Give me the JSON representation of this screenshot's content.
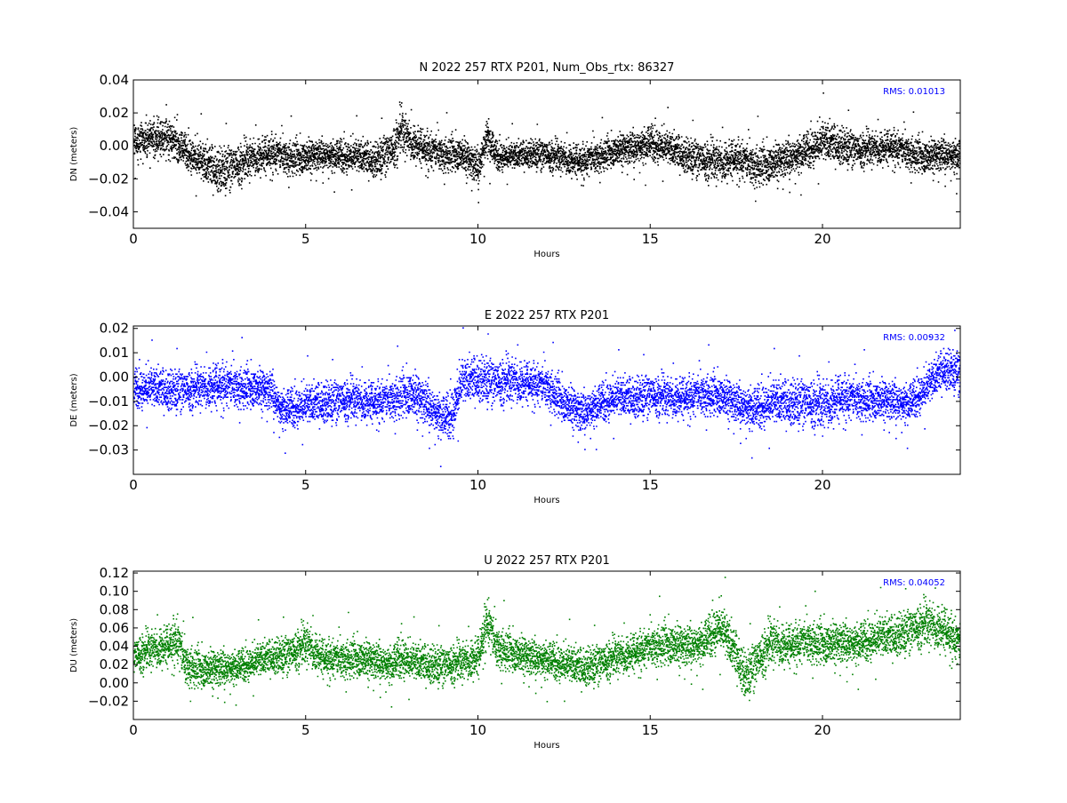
{
  "chart_data": [
    {
      "type": "scatter",
      "title": "N 2022 257 RTX  P201, Num_Obs_rtx: 86327",
      "xlabel": "Hours",
      "ylabel": "DN (meters)",
      "xlim": [
        0,
        24
      ],
      "ylim": [
        -0.05,
        0.04
      ],
      "xticks": [
        0,
        5,
        10,
        15,
        20
      ],
      "xtick_labels": [
        "0",
        "5",
        "10",
        "15",
        "20"
      ],
      "yticks": [
        -0.04,
        -0.02,
        0.0,
        0.02,
        0.04
      ],
      "ytick_labels": [
        "−0.04",
        "−0.02",
        "0.00",
        "0.02",
        "0.04"
      ],
      "annotation": "RMS:  0.01013",
      "color": "#000000",
      "grid": false,
      "series": [
        {
          "x": [
            0,
            0.5,
            1,
            1.5,
            2,
            2.5,
            3,
            3.5,
            4,
            4.5,
            5,
            5.5,
            6,
            6.5,
            7,
            7.5,
            7.75,
            8,
            8.5,
            9,
            9.5,
            10,
            10.25,
            10.5,
            11,
            11.5,
            12,
            12.5,
            13,
            13.5,
            14,
            14.5,
            15,
            15.5,
            16,
            16.5,
            17,
            17.5,
            18,
            18.5,
            19,
            19.5,
            20,
            20.5,
            21,
            21.5,
            22,
            22.5,
            23,
            23.5,
            24
          ],
          "y": [
            0.002,
            0.004,
            0.006,
            -0.002,
            -0.01,
            -0.014,
            -0.011,
            -0.006,
            -0.004,
            -0.007,
            -0.006,
            -0.004,
            -0.005,
            -0.006,
            -0.008,
            -0.002,
            0.01,
            0.004,
            -0.002,
            -0.005,
            -0.004,
            -0.012,
            0.008,
            -0.005,
            -0.006,
            -0.004,
            -0.005,
            -0.007,
            -0.009,
            -0.006,
            -0.002,
            0.0,
            0.003,
            -0.001,
            -0.005,
            -0.008,
            -0.009,
            -0.007,
            -0.012,
            -0.01,
            -0.006,
            -0.002,
            0.003,
            0.001,
            -0.002,
            -0.001,
            0.0,
            -0.004,
            -0.006,
            -0.004,
            -0.005
          ],
          "spread": [
            0.01,
            0.011,
            0.011,
            0.01,
            0.012,
            0.013,
            0.012,
            0.011,
            0.011,
            0.01,
            0.01,
            0.009,
            0.01,
            0.01,
            0.01,
            0.012,
            0.014,
            0.011,
            0.011,
            0.01,
            0.01,
            0.011,
            0.012,
            0.009,
            0.008,
            0.008,
            0.009,
            0.009,
            0.01,
            0.009,
            0.009,
            0.01,
            0.011,
            0.01,
            0.01,
            0.011,
            0.012,
            0.011,
            0.012,
            0.011,
            0.011,
            0.011,
            0.012,
            0.011,
            0.01,
            0.01,
            0.01,
            0.01,
            0.01,
            0.01,
            0.01
          ]
        }
      ]
    },
    {
      "type": "scatter",
      "title": "E 2022 257 RTX  P201",
      "xlabel": "Hours",
      "ylabel": "DE (meters)",
      "xlim": [
        0,
        24
      ],
      "ylim": [
        -0.04,
        0.021
      ],
      "xticks": [
        0,
        5,
        10,
        15,
        20
      ],
      "xtick_labels": [
        "0",
        "5",
        "10",
        "15",
        "20"
      ],
      "yticks": [
        -0.03,
        -0.02,
        -0.01,
        0.0,
        0.01,
        0.02
      ],
      "ytick_labels": [
        "−0.03",
        "−0.02",
        "−0.01",
        "0.00",
        "0.01",
        "0.02"
      ],
      "annotation": "RMS:  0.00932",
      "color": "#0000ff",
      "grid": false,
      "series": [
        {
          "x": [
            0,
            0.5,
            1,
            1.5,
            2,
            2.5,
            3,
            3.5,
            4,
            4.25,
            4.5,
            5,
            5.5,
            6,
            6.5,
            7,
            7.5,
            8,
            8.5,
            9,
            9.25,
            9.5,
            10,
            10.5,
            11,
            11.5,
            12,
            12.5,
            13,
            13.5,
            14,
            14.5,
            15,
            15.5,
            16,
            16.5,
            17,
            17.5,
            18,
            18.5,
            19,
            19.5,
            20,
            20.5,
            21,
            21.5,
            22,
            22.5,
            23,
            23.5,
            24
          ],
          "y": [
            -0.004,
            -0.004,
            -0.005,
            -0.005,
            -0.004,
            -0.003,
            -0.004,
            -0.004,
            -0.005,
            -0.012,
            -0.012,
            -0.011,
            -0.01,
            -0.009,
            -0.009,
            -0.01,
            -0.009,
            -0.006,
            -0.01,
            -0.016,
            -0.014,
            -0.002,
            0.0,
            -0.002,
            -0.001,
            -0.002,
            -0.004,
            -0.01,
            -0.014,
            -0.01,
            -0.008,
            -0.008,
            -0.007,
            -0.008,
            -0.008,
            -0.007,
            -0.007,
            -0.01,
            -0.012,
            -0.01,
            -0.01,
            -0.01,
            -0.011,
            -0.008,
            -0.009,
            -0.009,
            -0.009,
            -0.01,
            -0.004,
            0.004,
            0.002
          ],
          "spread": [
            0.008,
            0.008,
            0.008,
            0.008,
            0.008,
            0.009,
            0.008,
            0.008,
            0.008,
            0.008,
            0.008,
            0.008,
            0.008,
            0.008,
            0.008,
            0.008,
            0.008,
            0.009,
            0.009,
            0.009,
            0.01,
            0.009,
            0.009,
            0.009,
            0.009,
            0.008,
            0.008,
            0.008,
            0.008,
            0.008,
            0.008,
            0.008,
            0.008,
            0.008,
            0.008,
            0.008,
            0.008,
            0.008,
            0.009,
            0.009,
            0.009,
            0.009,
            0.01,
            0.009,
            0.008,
            0.008,
            0.008,
            0.008,
            0.008,
            0.008,
            0.008
          ]
        }
      ]
    },
    {
      "type": "scatter",
      "title": "U 2022 257 RTX  P201",
      "xlabel": "Hours",
      "ylabel": "DU (meters)",
      "xlim": [
        0,
        24
      ],
      "ylim": [
        -0.04,
        0.122
      ],
      "xticks": [
        0,
        5,
        10,
        15,
        20
      ],
      "xtick_labels": [
        "0",
        "5",
        "10",
        "15",
        "20"
      ],
      "yticks": [
        -0.02,
        0.0,
        0.02,
        0.04,
        0.06,
        0.08,
        0.1,
        0.12
      ],
      "ytick_labels": [
        "−0.02",
        "0.00",
        "0.02",
        "0.04",
        "0.06",
        "0.08",
        "0.10",
        "0.12"
      ],
      "annotation": "RMS:  0.04052",
      "color": "#008000",
      "grid": false,
      "series": [
        {
          "x": [
            0,
            0.5,
            1,
            1.25,
            1.5,
            2,
            2.5,
            3,
            3.5,
            4,
            4.5,
            5,
            5.5,
            6,
            6.5,
            7,
            7.5,
            7.75,
            8,
            8.5,
            9,
            9.5,
            10,
            10.25,
            10.5,
            11,
            11.5,
            12,
            12.5,
            13,
            13.5,
            14,
            14.5,
            15,
            15.5,
            16,
            16.5,
            17,
            17.5,
            17.75,
            18,
            18.5,
            19,
            19.5,
            20,
            20.5,
            21,
            21.5,
            22,
            22.5,
            23,
            23.5,
            24
          ],
          "y": [
            0.03,
            0.038,
            0.042,
            0.048,
            0.02,
            0.016,
            0.018,
            0.02,
            0.024,
            0.03,
            0.032,
            0.044,
            0.028,
            0.026,
            0.028,
            0.026,
            0.022,
            0.032,
            0.024,
            0.022,
            0.02,
            0.024,
            0.03,
            0.07,
            0.04,
            0.034,
            0.03,
            0.028,
            0.022,
            0.018,
            0.022,
            0.03,
            0.034,
            0.04,
            0.044,
            0.042,
            0.046,
            0.064,
            0.03,
            0.008,
            0.02,
            0.046,
            0.042,
            0.046,
            0.044,
            0.046,
            0.046,
            0.05,
            0.052,
            0.058,
            0.066,
            0.06,
            0.042
          ],
          "spread": [
            0.02,
            0.02,
            0.022,
            0.026,
            0.022,
            0.02,
            0.02,
            0.018,
            0.018,
            0.018,
            0.02,
            0.022,
            0.02,
            0.02,
            0.02,
            0.02,
            0.02,
            0.024,
            0.02,
            0.02,
            0.02,
            0.02,
            0.022,
            0.026,
            0.022,
            0.02,
            0.02,
            0.02,
            0.02,
            0.02,
            0.02,
            0.02,
            0.02,
            0.02,
            0.022,
            0.022,
            0.022,
            0.026,
            0.024,
            0.024,
            0.024,
            0.024,
            0.022,
            0.022,
            0.022,
            0.022,
            0.022,
            0.022,
            0.022,
            0.022,
            0.024,
            0.024,
            0.022
          ]
        }
      ]
    }
  ]
}
